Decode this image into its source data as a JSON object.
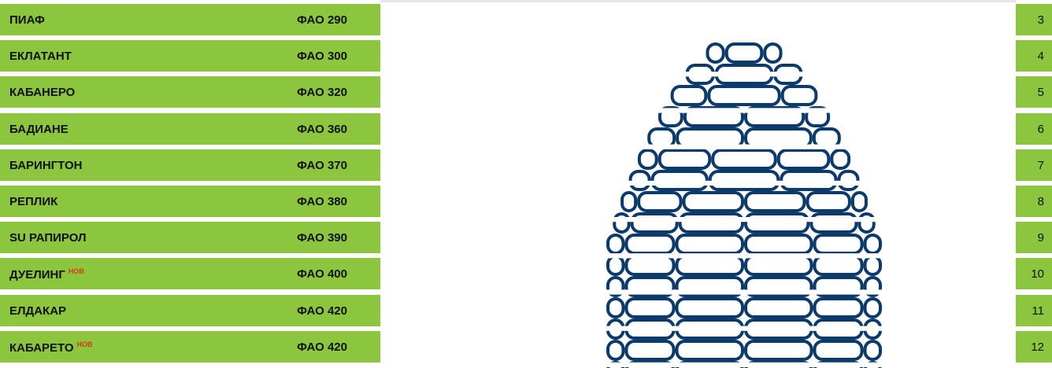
{
  "rows": [
    {
      "name": "ПИАФ",
      "fao": "ФАО 290",
      "page": "3"
    },
    {
      "name": "ЕКЛАТАНТ",
      "fao": "ФАО 300",
      "page": "4"
    },
    {
      "name": "КАБАНЕРО",
      "fao": "ФАО 320",
      "page": "5"
    },
    {
      "name": "БАДИАНЕ",
      "fao": "ФАО 360",
      "page": "6"
    },
    {
      "name": "БАРИНГТОН",
      "fao": "ФАО 370",
      "page": "7"
    },
    {
      "name": "РЕПЛИК",
      "fao": "ФАО 380",
      "page": "8"
    },
    {
      "name": "SU РАПИРОЛ",
      "fao": "ФАО 390",
      "page": "9"
    },
    {
      "name": "ДУЕЛИНГ",
      "badge": "НОВ",
      "fao": "ФАО 400",
      "page": "10"
    },
    {
      "name": "ЕЛДАКАР",
      "fao": "ФАО 420",
      "page": "11"
    },
    {
      "name": "КАБАРЕТО",
      "badge": "НОВ",
      "fao": "ФАО 420",
      "page": "12"
    }
  ]
}
